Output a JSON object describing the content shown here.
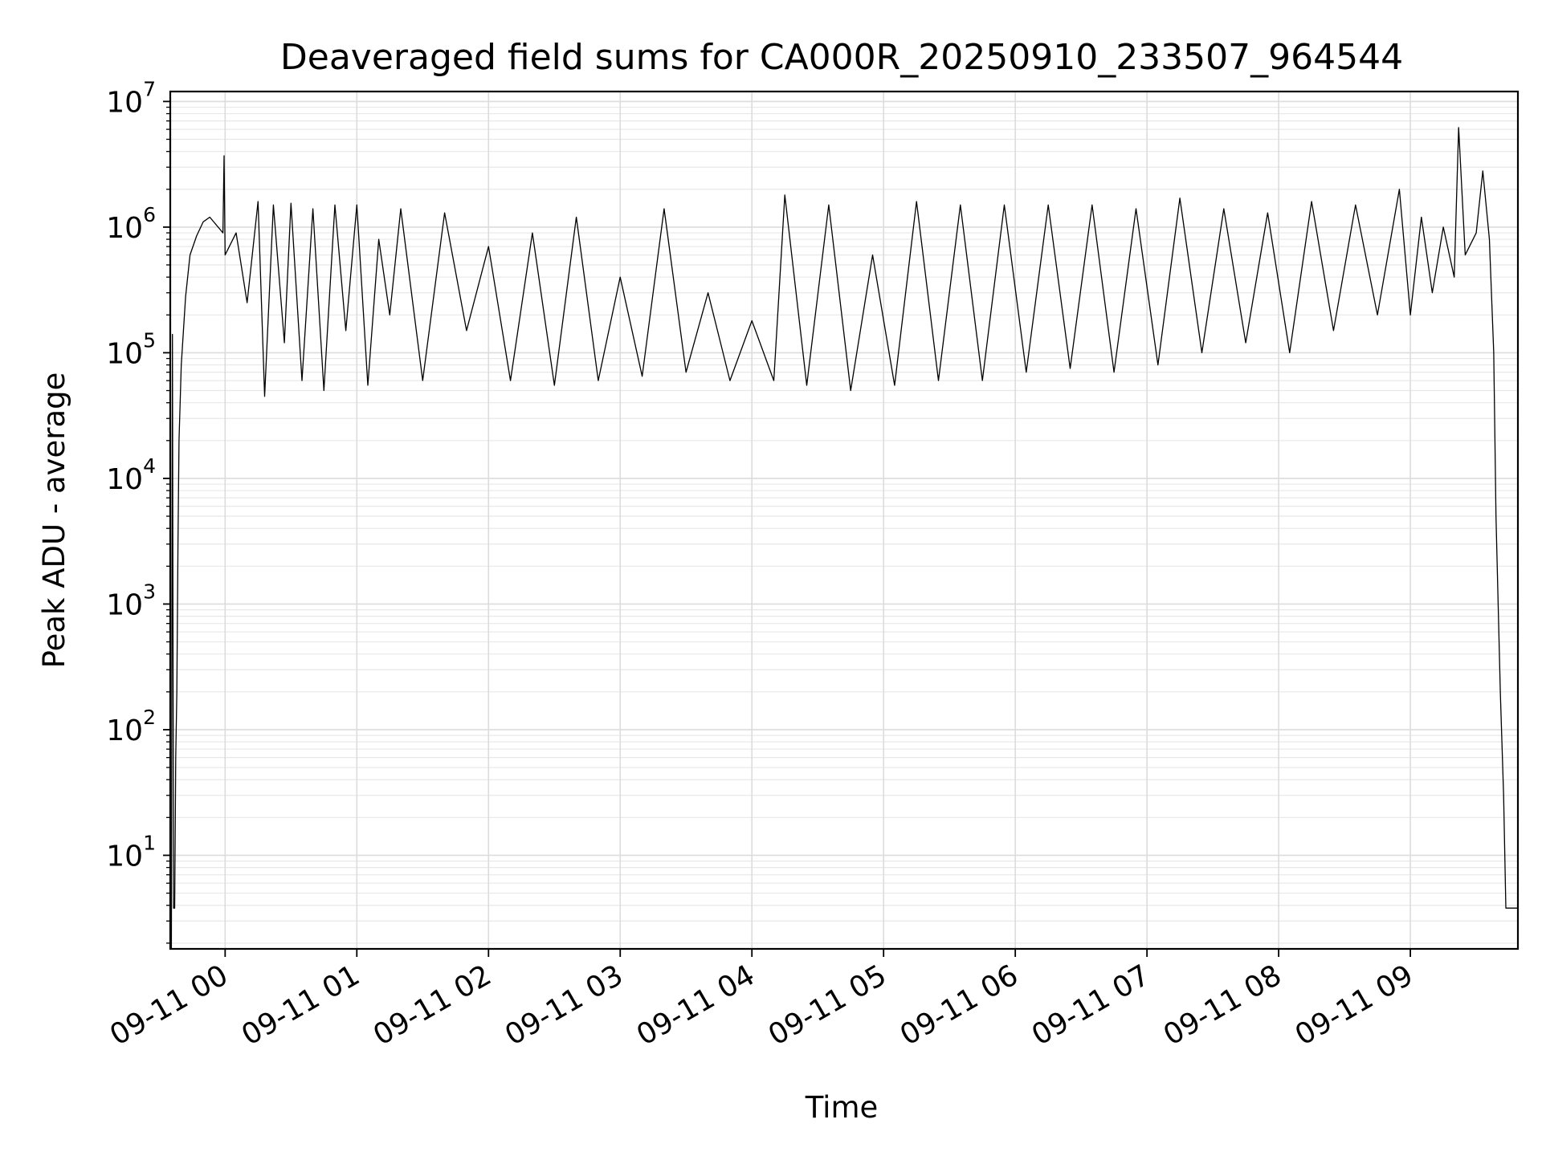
{
  "chart_data": {
    "type": "line",
    "title": "Deaveraged field sums for CA000R_20250910_233507_964544",
    "xlabel": "Time",
    "ylabel": "Peak ADU - average",
    "yscale": "log",
    "ylim": [
      1.8,
      12000000
    ],
    "xlim": [
      "2025-09-10 23:35:00",
      "2025-09-11 09:49:00"
    ],
    "grid": true,
    "grid_minor": true,
    "line_color": "#000000",
    "x_ticks": [
      {
        "t": "2025-09-11 00:00",
        "label": "09-11 00"
      },
      {
        "t": "2025-09-11 01:00",
        "label": "09-11 01"
      },
      {
        "t": "2025-09-11 02:00",
        "label": "09-11 02"
      },
      {
        "t": "2025-09-11 03:00",
        "label": "09-11 03"
      },
      {
        "t": "2025-09-11 04:00",
        "label": "09-11 04"
      },
      {
        "t": "2025-09-11 05:00",
        "label": "09-11 05"
      },
      {
        "t": "2025-09-11 06:00",
        "label": "09-11 06"
      },
      {
        "t": "2025-09-11 07:00",
        "label": "09-11 07"
      },
      {
        "t": "2025-09-11 08:00",
        "label": "09-11 08"
      },
      {
        "t": "2025-09-11 09:00",
        "label": "09-11 09"
      }
    ],
    "y_ticks": [
      {
        "value": 10,
        "base": "10",
        "exp": "1"
      },
      {
        "value": 100,
        "base": "10",
        "exp": "2"
      },
      {
        "value": 1000,
        "base": "10",
        "exp": "3"
      },
      {
        "value": 10000,
        "base": "10",
        "exp": "4"
      },
      {
        "value": 100000,
        "base": "10",
        "exp": "5"
      },
      {
        "value": 1000000,
        "base": "10",
        "exp": "6"
      },
      {
        "value": 10000000,
        "base": "10",
        "exp": "7"
      }
    ],
    "series": [
      {
        "points": [
          [
            "2025-09-10 23:35:30",
            1.8
          ],
          [
            "2025-09-10 23:36:00",
            140000
          ],
          [
            "2025-09-10 23:36:30",
            3.8
          ],
          [
            "2025-09-10 23:37:00",
            3.8
          ],
          [
            "2025-09-10 23:37:30",
            60
          ],
          [
            "2025-09-10 23:38:00",
            200
          ],
          [
            "2025-09-10 23:38:30",
            3000
          ],
          [
            "2025-09-10 23:39:00",
            20000
          ],
          [
            "2025-09-10 23:40:00",
            80000
          ],
          [
            "2025-09-10 23:42:00",
            280000
          ],
          [
            "2025-09-10 23:44:00",
            600000
          ],
          [
            "2025-09-10 23:47:00",
            850000
          ],
          [
            "2025-09-10 23:50:00",
            1100000
          ],
          [
            "2025-09-10 23:53:00",
            1200000
          ],
          [
            "2025-09-10 23:59:00",
            900000
          ],
          [
            "2025-09-10 23:59:30",
            3700000
          ],
          [
            "2025-09-11 00:00:00",
            600000
          ],
          [
            "2025-09-11 00:05:00",
            900000
          ],
          [
            "2025-09-11 00:10:00",
            250000
          ],
          [
            "2025-09-11 00:15:00",
            1600000
          ],
          [
            "2025-09-11 00:18:00",
            45000
          ],
          [
            "2025-09-11 00:22:00",
            1500000
          ],
          [
            "2025-09-11 00:27:00",
            120000
          ],
          [
            "2025-09-11 00:30:00",
            1550000
          ],
          [
            "2025-09-11 00:35:00",
            60000
          ],
          [
            "2025-09-11 00:40:00",
            1400000
          ],
          [
            "2025-09-11 00:45:00",
            50000
          ],
          [
            "2025-09-11 00:50:00",
            1500000
          ],
          [
            "2025-09-11 00:55:00",
            150000
          ],
          [
            "2025-09-11 01:00:00",
            1500000
          ],
          [
            "2025-09-11 01:05:00",
            55000
          ],
          [
            "2025-09-11 01:10:00",
            800000
          ],
          [
            "2025-09-11 01:15:00",
            200000
          ],
          [
            "2025-09-11 01:20:00",
            1400000
          ],
          [
            "2025-09-11 01:30:00",
            60000
          ],
          [
            "2025-09-11 01:40:00",
            1300000
          ],
          [
            "2025-09-11 01:50:00",
            150000
          ],
          [
            "2025-09-11 02:00:00",
            700000
          ],
          [
            "2025-09-11 02:10:00",
            60000
          ],
          [
            "2025-09-11 02:20:00",
            900000
          ],
          [
            "2025-09-11 02:30:00",
            55000
          ],
          [
            "2025-09-11 02:40:00",
            1200000
          ],
          [
            "2025-09-11 02:50:00",
            60000
          ],
          [
            "2025-09-11 03:00:00",
            400000
          ],
          [
            "2025-09-11 03:10:00",
            65000
          ],
          [
            "2025-09-11 03:20:00",
            1400000
          ],
          [
            "2025-09-11 03:30:00",
            70000
          ],
          [
            "2025-09-11 03:40:00",
            300000
          ],
          [
            "2025-09-11 03:50:00",
            60000
          ],
          [
            "2025-09-11 04:00:00",
            180000
          ],
          [
            "2025-09-11 04:10:00",
            60000
          ],
          [
            "2025-09-11 04:15:00",
            1800000
          ],
          [
            "2025-09-11 04:25:00",
            55000
          ],
          [
            "2025-09-11 04:35:00",
            1500000
          ],
          [
            "2025-09-11 04:45:00",
            50000
          ],
          [
            "2025-09-11 04:55:00",
            600000
          ],
          [
            "2025-09-11 05:05:00",
            55000
          ],
          [
            "2025-09-11 05:15:00",
            1600000
          ],
          [
            "2025-09-11 05:25:00",
            60000
          ],
          [
            "2025-09-11 05:35:00",
            1500000
          ],
          [
            "2025-09-11 05:45:00",
            60000
          ],
          [
            "2025-09-11 05:55:00",
            1500000
          ],
          [
            "2025-09-11 06:05:00",
            70000
          ],
          [
            "2025-09-11 06:15:00",
            1500000
          ],
          [
            "2025-09-11 06:25:00",
            75000
          ],
          [
            "2025-09-11 06:35:00",
            1500000
          ],
          [
            "2025-09-11 06:45:00",
            70000
          ],
          [
            "2025-09-11 06:55:00",
            1400000
          ],
          [
            "2025-09-11 07:05:00",
            80000
          ],
          [
            "2025-09-11 07:15:00",
            1700000
          ],
          [
            "2025-09-11 07:25:00",
            100000
          ],
          [
            "2025-09-11 07:35:00",
            1400000
          ],
          [
            "2025-09-11 07:45:00",
            120000
          ],
          [
            "2025-09-11 07:55:00",
            1300000
          ],
          [
            "2025-09-11 08:05:00",
            100000
          ],
          [
            "2025-09-11 08:15:00",
            1600000
          ],
          [
            "2025-09-11 08:25:00",
            150000
          ],
          [
            "2025-09-11 08:35:00",
            1500000
          ],
          [
            "2025-09-11 08:45:00",
            200000
          ],
          [
            "2025-09-11 08:55:00",
            2000000
          ],
          [
            "2025-09-11 09:00:00",
            200000
          ],
          [
            "2025-09-11 09:05:00",
            1200000
          ],
          [
            "2025-09-11 09:10:00",
            300000
          ],
          [
            "2025-09-11 09:15:00",
            1000000
          ],
          [
            "2025-09-11 09:20:00",
            400000
          ],
          [
            "2025-09-11 09:22:00",
            6200000
          ],
          [
            "2025-09-11 09:25:00",
            600000
          ],
          [
            "2025-09-11 09:30:00",
            900000
          ],
          [
            "2025-09-11 09:33:00",
            2800000
          ],
          [
            "2025-09-11 09:36:00",
            800000
          ],
          [
            "2025-09-11 09:38:00",
            100000
          ],
          [
            "2025-09-11 09:39:00",
            5000
          ],
          [
            "2025-09-11 09:41:00",
            200
          ],
          [
            "2025-09-11 09:42:30",
            30
          ],
          [
            "2025-09-11 09:43:30",
            3.8
          ],
          [
            "2025-09-11 09:49:00",
            3.8
          ]
        ]
      }
    ]
  }
}
